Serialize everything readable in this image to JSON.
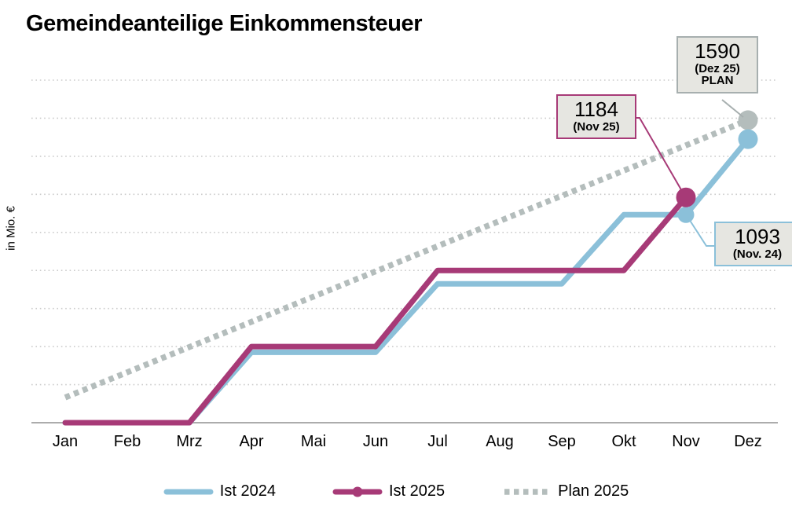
{
  "title": "Gemeindeanteilige Einkommensteuer",
  "y_axis_label": "in Mio. €",
  "colors": {
    "ist2024": "#8BC0D9",
    "ist2025": "#A73A77",
    "plan": "#B4BDBC",
    "plan_border": "#A7AFAF",
    "gridline": "#CBCBCB",
    "axis": "#ACACAC",
    "annotation_fill": "#E6E6E1",
    "text": "#000000"
  },
  "chart_data": {
    "type": "line",
    "title": "Gemeindeanteilige Einkommensteuer",
    "ylabel": "in Mio. €",
    "xlabel": "",
    "ylim": [
      0,
      1800
    ],
    "gridline_step": 200,
    "grid": "horizontal-dotted",
    "legend_position": "bottom-center",
    "categories": [
      "Jan",
      "Feb",
      "Mrz",
      "Apr",
      "Mai",
      "Jun",
      "Jul",
      "Aug",
      "Sep",
      "Okt",
      "Nov",
      "Dez"
    ],
    "series": [
      {
        "name": "Ist 2024",
        "color_key": "ist2024",
        "style": "solid",
        "legend_marker": false,
        "values": [
          0,
          0,
          0,
          370,
          370,
          370,
          730,
          730,
          730,
          1093,
          1093,
          1490
        ],
        "markers": [
          {
            "month": "Nov",
            "value": 1093
          },
          {
            "month": "Dez",
            "value": 1490
          }
        ]
      },
      {
        "name": "Ist 2025",
        "color_key": "ist2025",
        "style": "solid",
        "legend_marker": true,
        "values": [
          0,
          0,
          0,
          400,
          400,
          400,
          800,
          800,
          800,
          800,
          1184
        ],
        "markers": [
          {
            "month": "Nov",
            "value": 1184
          }
        ]
      },
      {
        "name": "Plan 2025",
        "color_key": "plan",
        "style": "dotted",
        "legend_marker": false,
        "values": [
          132.5,
          265,
          397.5,
          530,
          662.5,
          795,
          927.5,
          1060,
          1192.5,
          1325,
          1457.5,
          1590
        ],
        "markers": [
          {
            "month": "Dez",
            "value": 1590
          }
        ]
      }
    ]
  },
  "annotations": {
    "plan_dez": {
      "value": "1590",
      "label": "(Dez 25)",
      "label2": "PLAN"
    },
    "ist2025_nov": {
      "value": "1184",
      "label": "(Nov 25)"
    },
    "ist2024_nov": {
      "value": "1093",
      "label": "(Nov. 24)"
    }
  }
}
